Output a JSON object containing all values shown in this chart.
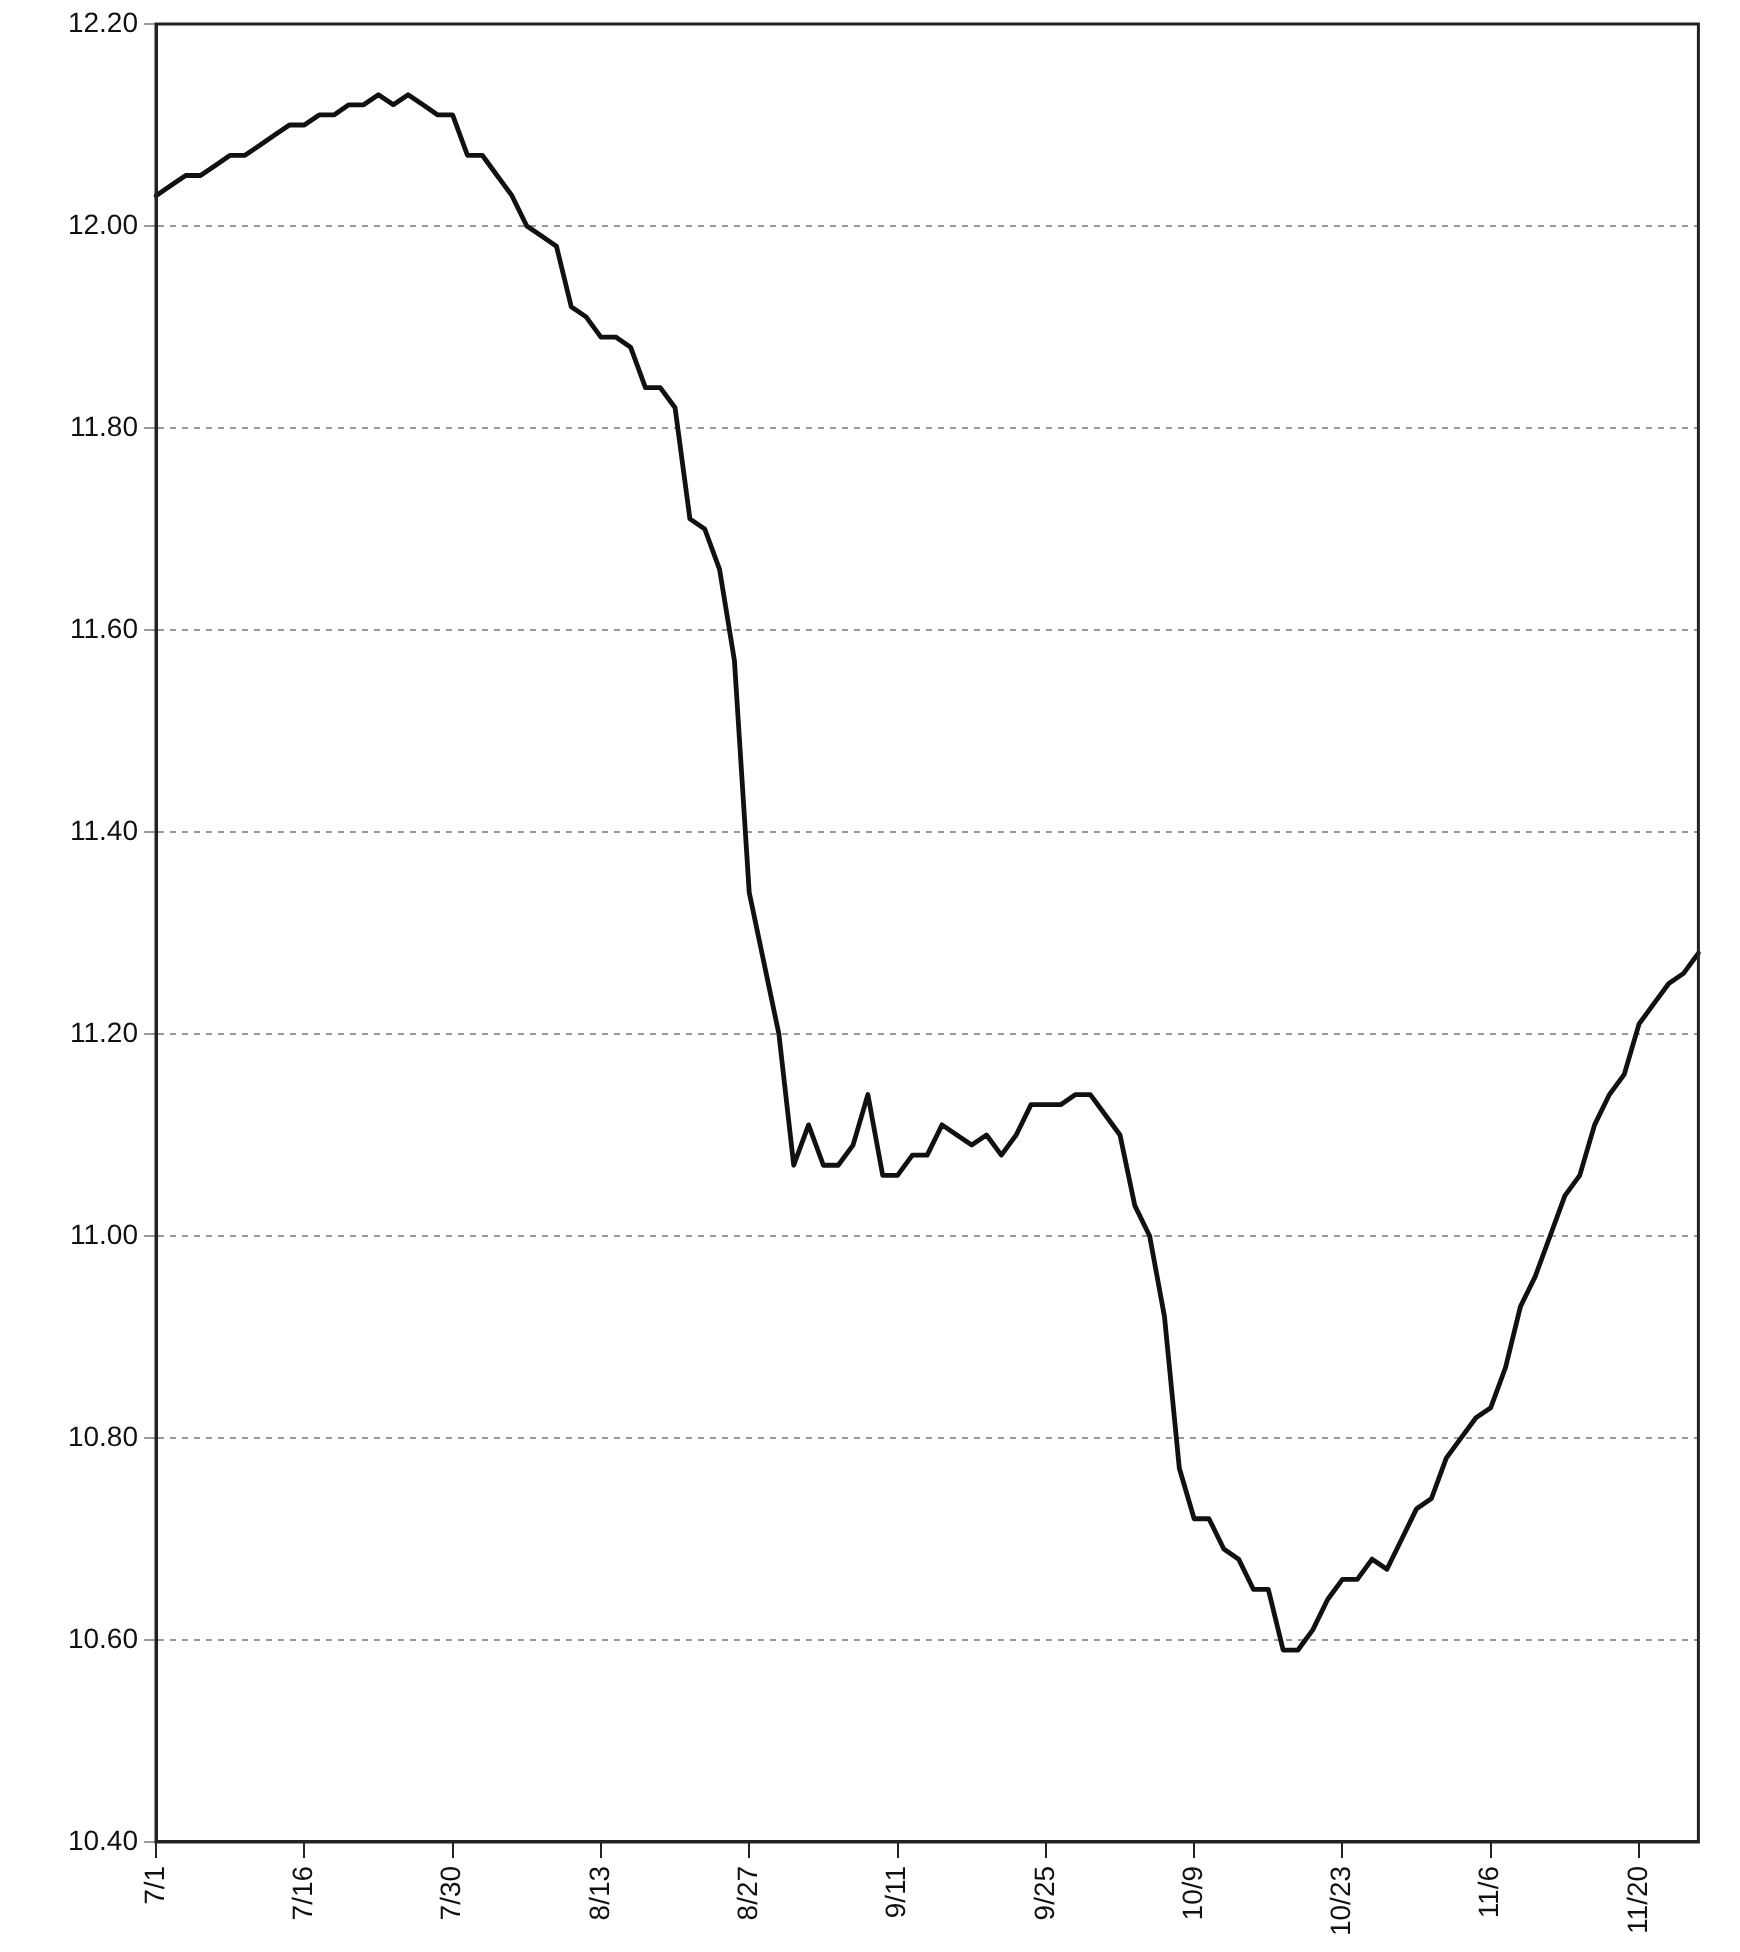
{
  "chart_data": {
    "type": "line",
    "categories": [
      "7/1",
      null,
      null,
      null,
      null,
      null,
      null,
      null,
      null,
      null,
      "7/16",
      null,
      null,
      null,
      null,
      null,
      null,
      null,
      null,
      null,
      "7/30",
      null,
      null,
      null,
      null,
      null,
      null,
      null,
      null,
      null,
      "8/13",
      null,
      null,
      null,
      null,
      null,
      null,
      null,
      null,
      null,
      "8/27",
      null,
      null,
      null,
      null,
      null,
      null,
      null,
      null,
      null,
      "9/11",
      null,
      null,
      null,
      null,
      null,
      null,
      null,
      null,
      null,
      "9/25",
      null,
      null,
      null,
      null,
      null,
      null,
      null,
      null,
      null,
      "10/9",
      null,
      null,
      null,
      null,
      null,
      null,
      null,
      null,
      null,
      "10/23",
      null,
      null,
      null,
      null,
      null,
      null,
      null,
      null,
      null,
      "11/6",
      null,
      null,
      null,
      null,
      null,
      null,
      null,
      null,
      null,
      "11/20",
      null,
      null,
      null,
      null
    ],
    "series": [
      {
        "color": "#111111",
        "values": [
          12.03,
          12.04,
          12.05,
          12.05,
          12.06,
          12.07,
          12.07,
          12.08,
          12.09,
          12.1,
          12.1,
          12.11,
          12.11,
          12.12,
          12.12,
          12.13,
          12.12,
          12.13,
          12.12,
          12.11,
          12.11,
          12.07,
          12.07,
          12.05,
          12.03,
          12.0,
          11.99,
          11.98,
          11.92,
          11.91,
          11.89,
          11.89,
          11.88,
          11.84,
          11.84,
          11.82,
          11.71,
          11.7,
          11.66,
          11.57,
          11.34,
          11.27,
          11.2,
          11.07,
          11.11,
          11.07,
          11.07,
          11.09,
          11.14,
          11.06,
          11.06,
          11.08,
          11.08,
          11.11,
          11.1,
          11.09,
          11.1,
          11.08,
          11.1,
          11.13,
          11.13,
          11.13,
          11.14,
          11.14,
          11.12,
          11.1,
          11.03,
          11.0,
          10.92,
          10.77,
          10.72,
          10.72,
          10.69,
          10.68,
          10.65,
          10.65,
          10.59,
          10.59,
          10.61,
          10.64,
          10.66,
          10.66,
          10.68,
          10.67,
          10.7,
          10.73,
          10.74,
          10.78,
          10.8,
          10.82,
          10.83,
          10.87,
          10.93,
          10.96,
          11.0,
          11.04,
          11.06,
          11.11,
          11.14,
          11.16,
          11.21,
          11.23,
          11.25,
          11.26,
          11.28
        ]
      }
    ],
    "ylim": [
      10.4,
      12.2
    ],
    "yticks": [
      {
        "value": 10.4,
        "label": "10.40"
      },
      {
        "value": 10.6,
        "label": "10.60"
      },
      {
        "value": 10.8,
        "label": "10.80"
      },
      {
        "value": 11.0,
        "label": "11.00"
      },
      {
        "value": 11.2,
        "label": "11.20"
      },
      {
        "value": 11.4,
        "label": "11.40"
      },
      {
        "value": 11.6,
        "label": "11.60"
      },
      {
        "value": 11.8,
        "label": "11.80"
      },
      {
        "value": 12.0,
        "label": "12.00"
      },
      {
        "value": 12.2,
        "label": "12.20"
      }
    ],
    "grid": "y",
    "legend": false,
    "marker": "none",
    "line_style": "solid"
  }
}
